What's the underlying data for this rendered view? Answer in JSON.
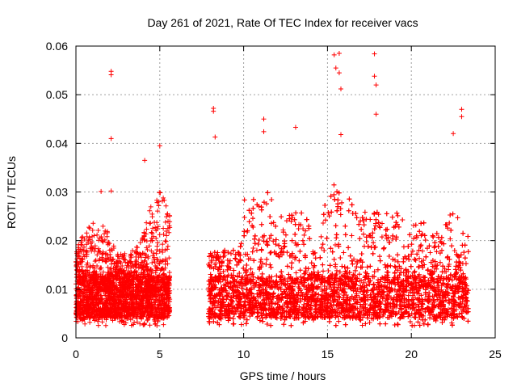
{
  "chart_data": {
    "type": "scatter",
    "title": "Day 261 of 2021, Rate Of TEC Index for receiver vacs",
    "xlabel": "GPS time / hours",
    "ylabel": "ROTI / TECUs",
    "xlim": [
      0,
      25
    ],
    "ylim": [
      0,
      0.06
    ],
    "xticks": [
      0,
      5,
      10,
      15,
      20,
      25
    ],
    "xtick_labels": [
      "0",
      "5",
      "10",
      "15",
      "20",
      "25"
    ],
    "yticks": [
      0,
      0.01,
      0.02,
      0.03,
      0.04,
      0.05,
      0.06
    ],
    "ytick_labels": [
      "0",
      "0.01",
      "0.02",
      "0.03",
      "0.04",
      "0.05",
      "0.06"
    ],
    "grid": true,
    "marker": "plus",
    "color": "#ff0000",
    "data_coverage_hours": [
      [
        0.0,
        5.6
      ],
      [
        7.9,
        23.4
      ]
    ],
    "typical_range": [
      0.004,
      0.02
    ],
    "notable_points": [
      {
        "x": 2.1,
        "y": 0.0548
      },
      {
        "x": 2.1,
        "y": 0.0541
      },
      {
        "x": 2.1,
        "y": 0.041
      },
      {
        "x": 8.2,
        "y": 0.0472
      },
      {
        "x": 8.2,
        "y": 0.0466
      },
      {
        "x": 8.3,
        "y": 0.0413
      },
      {
        "x": 11.2,
        "y": 0.045
      },
      {
        "x": 11.2,
        "y": 0.0424
      },
      {
        "x": 13.1,
        "y": 0.0433
      },
      {
        "x": 15.4,
        "y": 0.0582
      },
      {
        "x": 15.5,
        "y": 0.0555
      },
      {
        "x": 15.7,
        "y": 0.0585
      },
      {
        "x": 15.7,
        "y": 0.0545
      },
      {
        "x": 15.8,
        "y": 0.0512
      },
      {
        "x": 15.8,
        "y": 0.0418
      },
      {
        "x": 17.8,
        "y": 0.0584
      },
      {
        "x": 17.8,
        "y": 0.0538
      },
      {
        "x": 17.9,
        "y": 0.052
      },
      {
        "x": 17.9,
        "y": 0.046
      },
      {
        "x": 23.0,
        "y": 0.047
      },
      {
        "x": 23.0,
        "y": 0.0455
      },
      {
        "x": 22.5,
        "y": 0.042
      },
      {
        "x": 5.0,
        "y": 0.0395
      },
      {
        "x": 4.1,
        "y": 0.0365
      },
      {
        "x": 1.5,
        "y": 0.0301
      },
      {
        "x": 2.1,
        "y": 0.0302
      }
    ]
  }
}
